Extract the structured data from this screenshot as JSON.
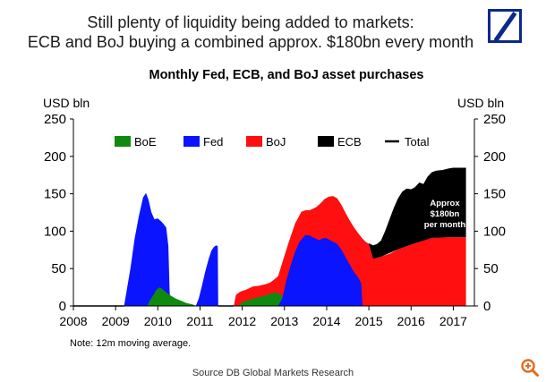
{
  "headline": {
    "line1": "Still plenty of liquidity being added to markets:",
    "line2": "ECB and BoJ buying a combined approx. $180bn every month"
  },
  "logo": {
    "icon": "deutsche-bank-logo-icon",
    "color": "#0a2a8c"
  },
  "chart_data": {
    "type": "area",
    "title": "Monthly Fed, ECB, and BoJ asset purchases",
    "ylabel_left": "USD bln",
    "ylabel_right": "USD bln",
    "xlim": [
      2008,
      2017.5
    ],
    "ylim": [
      0,
      250
    ],
    "xticks": [
      "2008",
      "2009",
      "2010",
      "2011",
      "2012",
      "2013",
      "2014",
      "2015",
      "2016",
      "2017"
    ],
    "yticks": [
      "0",
      "50",
      "100",
      "150",
      "200",
      "250"
    ],
    "legend": {
      "placement": "top",
      "entries": [
        {
          "name": "BoE",
          "color": "#0f8a0f"
        },
        {
          "name": "Fed",
          "color": "#0b14ff"
        },
        {
          "name": "BoJ",
          "color": "#ff0f0f"
        },
        {
          "name": "ECB",
          "color": "#000000"
        },
        {
          "name": "Total",
          "color": "#000000"
        }
      ]
    },
    "note": "Note: 12m moving average.",
    "annotation": {
      "line1": "Approx",
      "line2": "$180bn",
      "line3": "per month"
    },
    "series": [
      {
        "name": "Fed",
        "color": "#0b14ff",
        "points": [
          [
            2009.2,
            0
          ],
          [
            2009.35,
            50
          ],
          [
            2009.45,
            90
          ],
          [
            2009.55,
            120
          ],
          [
            2009.65,
            145
          ],
          [
            2009.72,
            151
          ],
          [
            2009.78,
            142
          ],
          [
            2009.85,
            125
          ],
          [
            2009.92,
            116
          ],
          [
            2010.0,
            117
          ],
          [
            2010.08,
            113
          ],
          [
            2010.13,
            110
          ],
          [
            2010.2,
            105
          ],
          [
            2010.25,
            80
          ],
          [
            2010.28,
            20
          ],
          [
            2010.3,
            0
          ]
        ]
      },
      {
        "name": "Fed",
        "color": "#0b14ff",
        "points": [
          [
            2010.9,
            0
          ],
          [
            2010.97,
            10
          ],
          [
            2011.05,
            28
          ],
          [
            2011.12,
            45
          ],
          [
            2011.2,
            62
          ],
          [
            2011.27,
            74
          ],
          [
            2011.33,
            79
          ],
          [
            2011.38,
            81
          ],
          [
            2011.42,
            80
          ],
          [
            2011.43,
            0
          ]
        ]
      },
      {
        "name": "BoE",
        "color": "#0f8a0f",
        "points": [
          [
            2009.75,
            0
          ],
          [
            2009.82,
            8
          ],
          [
            2009.9,
            15
          ],
          [
            2009.97,
            22
          ],
          [
            2010.05,
            25
          ],
          [
            2010.12,
            22
          ],
          [
            2010.2,
            18
          ],
          [
            2010.3,
            14
          ],
          [
            2010.42,
            10
          ],
          [
            2010.55,
            7
          ],
          [
            2010.68,
            4
          ],
          [
            2010.82,
            2
          ],
          [
            2010.92,
            0
          ]
        ]
      },
      {
        "name": "BoJ",
        "color": "#ff0f0f",
        "points": [
          [
            2011.8,
            0
          ],
          [
            2011.85,
            15
          ],
          [
            2011.95,
            19
          ],
          [
            2012.1,
            22
          ],
          [
            2012.25,
            26
          ],
          [
            2012.4,
            27
          ],
          [
            2012.55,
            29
          ],
          [
            2012.65,
            31
          ],
          [
            2012.75,
            35
          ],
          [
            2012.85,
            40
          ],
          [
            2012.95,
            58
          ],
          [
            2013.1,
            85
          ],
          [
            2013.25,
            110
          ],
          [
            2013.4,
            126
          ],
          [
            2013.5,
            128
          ],
          [
            2013.6,
            128
          ],
          [
            2013.75,
            132
          ],
          [
            2013.85,
            137
          ],
          [
            2013.95,
            143
          ],
          [
            2014.05,
            146
          ],
          [
            2014.15,
            147
          ],
          [
            2014.25,
            144
          ],
          [
            2014.35,
            135
          ],
          [
            2014.45,
            124
          ],
          [
            2014.55,
            114
          ],
          [
            2014.65,
            105
          ],
          [
            2014.75,
            97
          ],
          [
            2014.85,
            90
          ],
          [
            2014.92,
            86
          ],
          [
            2015.0,
            83
          ],
          [
            2015.1,
            63
          ],
          [
            2015.3,
            66
          ],
          [
            2015.5,
            70
          ],
          [
            2015.7,
            76
          ],
          [
            2015.9,
            80
          ],
          [
            2016.1,
            84
          ],
          [
            2016.3,
            88
          ],
          [
            2016.5,
            91
          ],
          [
            2016.7,
            92
          ],
          [
            2016.9,
            92
          ],
          [
            2017.1,
            92
          ],
          [
            2017.3,
            92
          ],
          [
            2017.3,
            0
          ]
        ]
      },
      {
        "name": "BoE",
        "color": "#0f8a0f",
        "points": [
          [
            2011.9,
            0
          ],
          [
            2012.0,
            5
          ],
          [
            2012.2,
            9
          ],
          [
            2012.4,
            12
          ],
          [
            2012.55,
            14
          ],
          [
            2012.7,
            17
          ],
          [
            2012.8,
            18
          ],
          [
            2012.95,
            14
          ],
          [
            2013.1,
            12
          ],
          [
            2013.3,
            8
          ],
          [
            2013.45,
            5
          ],
          [
            2013.6,
            3
          ],
          [
            2013.8,
            1
          ],
          [
            2013.95,
            0
          ]
        ]
      },
      {
        "name": "Fed",
        "color": "#0b14ff",
        "points": [
          [
            2012.85,
            0
          ],
          [
            2012.95,
            10
          ],
          [
            2013.05,
            35
          ],
          [
            2013.15,
            55
          ],
          [
            2013.25,
            72
          ],
          [
            2013.35,
            85
          ],
          [
            2013.45,
            92
          ],
          [
            2013.5,
            95
          ],
          [
            2013.6,
            94
          ],
          [
            2013.7,
            91
          ],
          [
            2013.82,
            88
          ],
          [
            2013.9,
            90
          ],
          [
            2013.97,
            91
          ],
          [
            2014.05,
            89
          ],
          [
            2014.15,
            86
          ],
          [
            2014.25,
            83
          ],
          [
            2014.35,
            75
          ],
          [
            2014.45,
            65
          ],
          [
            2014.55,
            55
          ],
          [
            2014.65,
            45
          ],
          [
            2014.75,
            38
          ],
          [
            2014.82,
            30
          ],
          [
            2014.85,
            0
          ]
        ]
      },
      {
        "name": "ECB",
        "color": "#000000",
        "points": [
          [
            2015.0,
            83
          ],
          [
            2015.1,
            80
          ],
          [
            2015.2,
            82
          ],
          [
            2015.3,
            87
          ],
          [
            2015.4,
            100
          ],
          [
            2015.5,
            115
          ],
          [
            2015.6,
            130
          ],
          [
            2015.7,
            143
          ],
          [
            2015.8,
            152
          ],
          [
            2015.9,
            156
          ],
          [
            2016.0,
            155
          ],
          [
            2016.1,
            158
          ],
          [
            2016.2,
            164
          ],
          [
            2016.3,
            162
          ],
          [
            2016.4,
            172
          ],
          [
            2016.5,
            178
          ],
          [
            2016.6,
            180
          ],
          [
            2016.75,
            181
          ],
          [
            2016.9,
            183
          ],
          [
            2017.0,
            184
          ],
          [
            2017.3,
            184
          ],
          [
            2017.3,
            92
          ],
          [
            2016.9,
            92
          ],
          [
            2016.5,
            91
          ],
          [
            2016.1,
            84
          ],
          [
            2015.7,
            76
          ],
          [
            2015.3,
            66
          ],
          [
            2015.1,
            63
          ]
        ]
      }
    ],
    "total_line": [
      [
        2015.0,
        83
      ],
      [
        2015.1,
        80
      ],
      [
        2015.2,
        82
      ],
      [
        2015.3,
        87
      ],
      [
        2015.4,
        100
      ],
      [
        2015.5,
        115
      ],
      [
        2015.6,
        130
      ],
      [
        2015.7,
        143
      ],
      [
        2015.8,
        152
      ],
      [
        2015.9,
        156
      ],
      [
        2016.0,
        155
      ],
      [
        2016.1,
        158
      ],
      [
        2016.2,
        164
      ],
      [
        2016.3,
        162
      ],
      [
        2016.4,
        172
      ],
      [
        2016.5,
        178
      ],
      [
        2016.6,
        180
      ],
      [
        2016.75,
        181
      ],
      [
        2016.9,
        183
      ],
      [
        2017.0,
        184
      ],
      [
        2017.3,
        184
      ]
    ]
  },
  "source": "Source   DB Global Markets Research",
  "zoom": {
    "icon": "zoom-in-icon",
    "color": "#e66a1f"
  }
}
